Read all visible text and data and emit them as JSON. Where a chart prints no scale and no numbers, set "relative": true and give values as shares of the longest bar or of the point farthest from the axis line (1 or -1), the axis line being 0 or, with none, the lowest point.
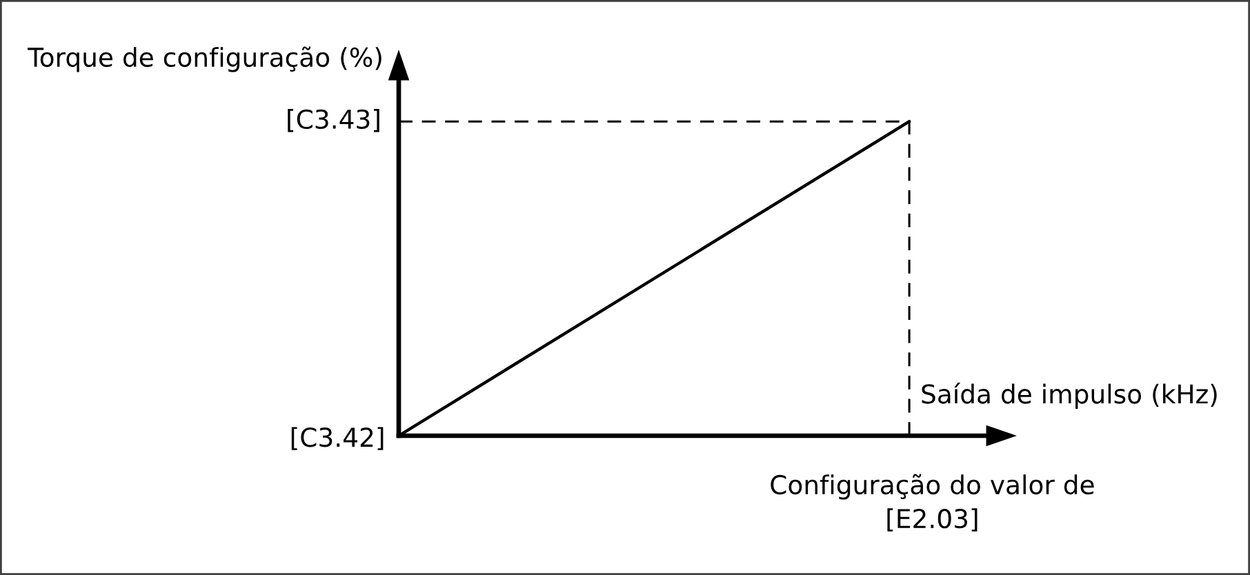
{
  "chart_data": {
    "type": "line",
    "ylabel": "Torque de configuração (%)",
    "xlabel": "Saída de impulso (kHz)",
    "categories": [
      null,
      null
    ],
    "series": [
      {
        "color": "#000000",
        "values": [
          0,
          1
        ]
      }
    ],
    "relative": true,
    "ref_lines": [
      {
        "axis": "y",
        "value": 1,
        "label": "[C3.43]",
        "line_style": "dashed",
        "color": "#000000"
      }
    ],
    "annotations": [
      "[C3.42]",
      "Configuração do valor de\n[E2.03]"
    ]
  }
}
